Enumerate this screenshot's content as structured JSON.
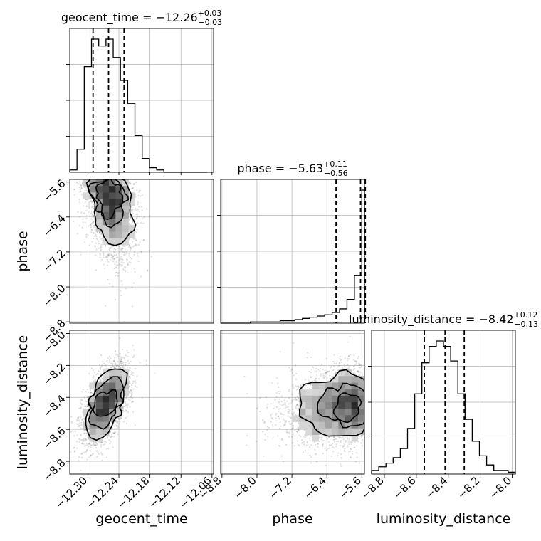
{
  "chart_data": {
    "type": "corner",
    "parameters": [
      "geocent_time",
      "phase",
      "luminosity_distance"
    ],
    "axis_labels": {
      "geocent_time": "geocent_time",
      "phase": "phase",
      "luminosity_distance": "luminosity_distance"
    },
    "ranges": {
      "geocent_time": [
        -12.335,
        -12.057
      ],
      "phase": [
        -8.83,
        -5.54
      ],
      "luminosity_distance": [
        -8.88,
        -7.98
      ]
    },
    "ticks": {
      "geocent_time": [
        -12.3,
        -12.24,
        -12.18,
        -12.12,
        -12.06
      ],
      "phase": [
        -8.8,
        -8.0,
        -7.2,
        -6.4,
        -5.6
      ],
      "luminosity_distance": [
        -8.8,
        -8.6,
        -8.4,
        -8.2,
        -8.0
      ]
    },
    "tick_labels": {
      "geocent_time": [
        "−12.30",
        "−12.24",
        "−12.18",
        "−12.12",
        "−12.06"
      ],
      "phase": [
        "−8.8",
        "−8.0",
        "−7.2",
        "−6.4",
        "−5.6"
      ],
      "luminosity_distance": [
        "−8.8",
        "−8.6",
        "−8.4",
        "−8.2",
        "−8.0"
      ]
    },
    "titles": [
      {
        "name": "geocent_time",
        "text": "geocent_time = −12.26",
        "plus": "+0.03",
        "minus": "−0.03"
      },
      {
        "name": "phase",
        "text": "phase = −5.63",
        "plus": "+0.11",
        "minus": "−0.56"
      },
      {
        "name": "luminosity_distance",
        "text": "luminosity_distance = −8.42",
        "plus": "+0.12",
        "minus": "−0.13"
      }
    ],
    "histograms": {
      "geocent_time": {
        "edges": [
          -12.335,
          -12.321,
          -12.307,
          -12.293,
          -12.279,
          -12.265,
          -12.251,
          -12.237,
          -12.223,
          -12.209,
          -12.195,
          -12.181,
          -12.167,
          -12.153,
          -12.139,
          -12.125,
          -12.111,
          -12.097,
          -12.083,
          -12.069
        ],
        "counts": [
          1,
          10,
          46,
          58,
          55,
          58,
          50,
          40,
          30,
          16,
          6,
          2,
          1,
          0,
          0,
          0,
          0,
          0,
          0
        ]
      },
      "phase": {
        "edges": [
          -8.83,
          -8.66,
          -8.49,
          -8.32,
          -8.15,
          -7.98,
          -7.81,
          -7.64,
          -7.47,
          -7.3,
          -7.13,
          -6.96,
          -6.79,
          -6.62,
          -6.45,
          -6.28,
          -6.11,
          -5.94,
          -5.77,
          -5.6,
          -5.54
        ],
        "counts": [
          0,
          0,
          0,
          0,
          1,
          1,
          1,
          1,
          2,
          2,
          3,
          4,
          5,
          6,
          7,
          9,
          12,
          20,
          40,
          112
        ]
      },
      "luminosity_distance": {
        "edges": [
          -8.88,
          -8.835,
          -8.79,
          -8.745,
          -8.7,
          -8.655,
          -8.61,
          -8.565,
          -8.52,
          -8.475,
          -8.43,
          -8.385,
          -8.34,
          -8.295,
          -8.25,
          -8.205,
          -8.16,
          -8.115,
          -8.07,
          -8.025,
          -7.98
        ],
        "counts": [
          2,
          4,
          6,
          9,
          14,
          25,
          44,
          61,
          70,
          73,
          70,
          62,
          44,
          30,
          18,
          10,
          5,
          2,
          2,
          1
        ]
      }
    },
    "quantiles": {
      "geocent_time": [
        -12.29,
        -12.26,
        -12.23
      ],
      "phase": [
        -6.19,
        -5.63,
        -5.52
      ],
      "luminosity_distance": [
        -8.55,
        -8.42,
        -8.3
      ]
    },
    "scatter_shapes": {
      "geocent_time_vs_phase": {
        "x_mean": -12.265,
        "x_sd": 0.022,
        "y_top": -5.58,
        "y_sd": 0.8,
        "count": 2600
      },
      "geocent_time_vs_luminosity_distance": {
        "x_mean": -12.265,
        "x_sd": 0.022,
        "y_mean": -8.44,
        "y_sd": 0.12,
        "corr": 0.55,
        "count": 2800
      },
      "phase_vs_luminosity_distance": {
        "x_top": -5.58,
        "x_sd": 0.8,
        "y_mean": -8.44,
        "y_sd": 0.12,
        "count": 2800
      }
    },
    "grid": true
  }
}
